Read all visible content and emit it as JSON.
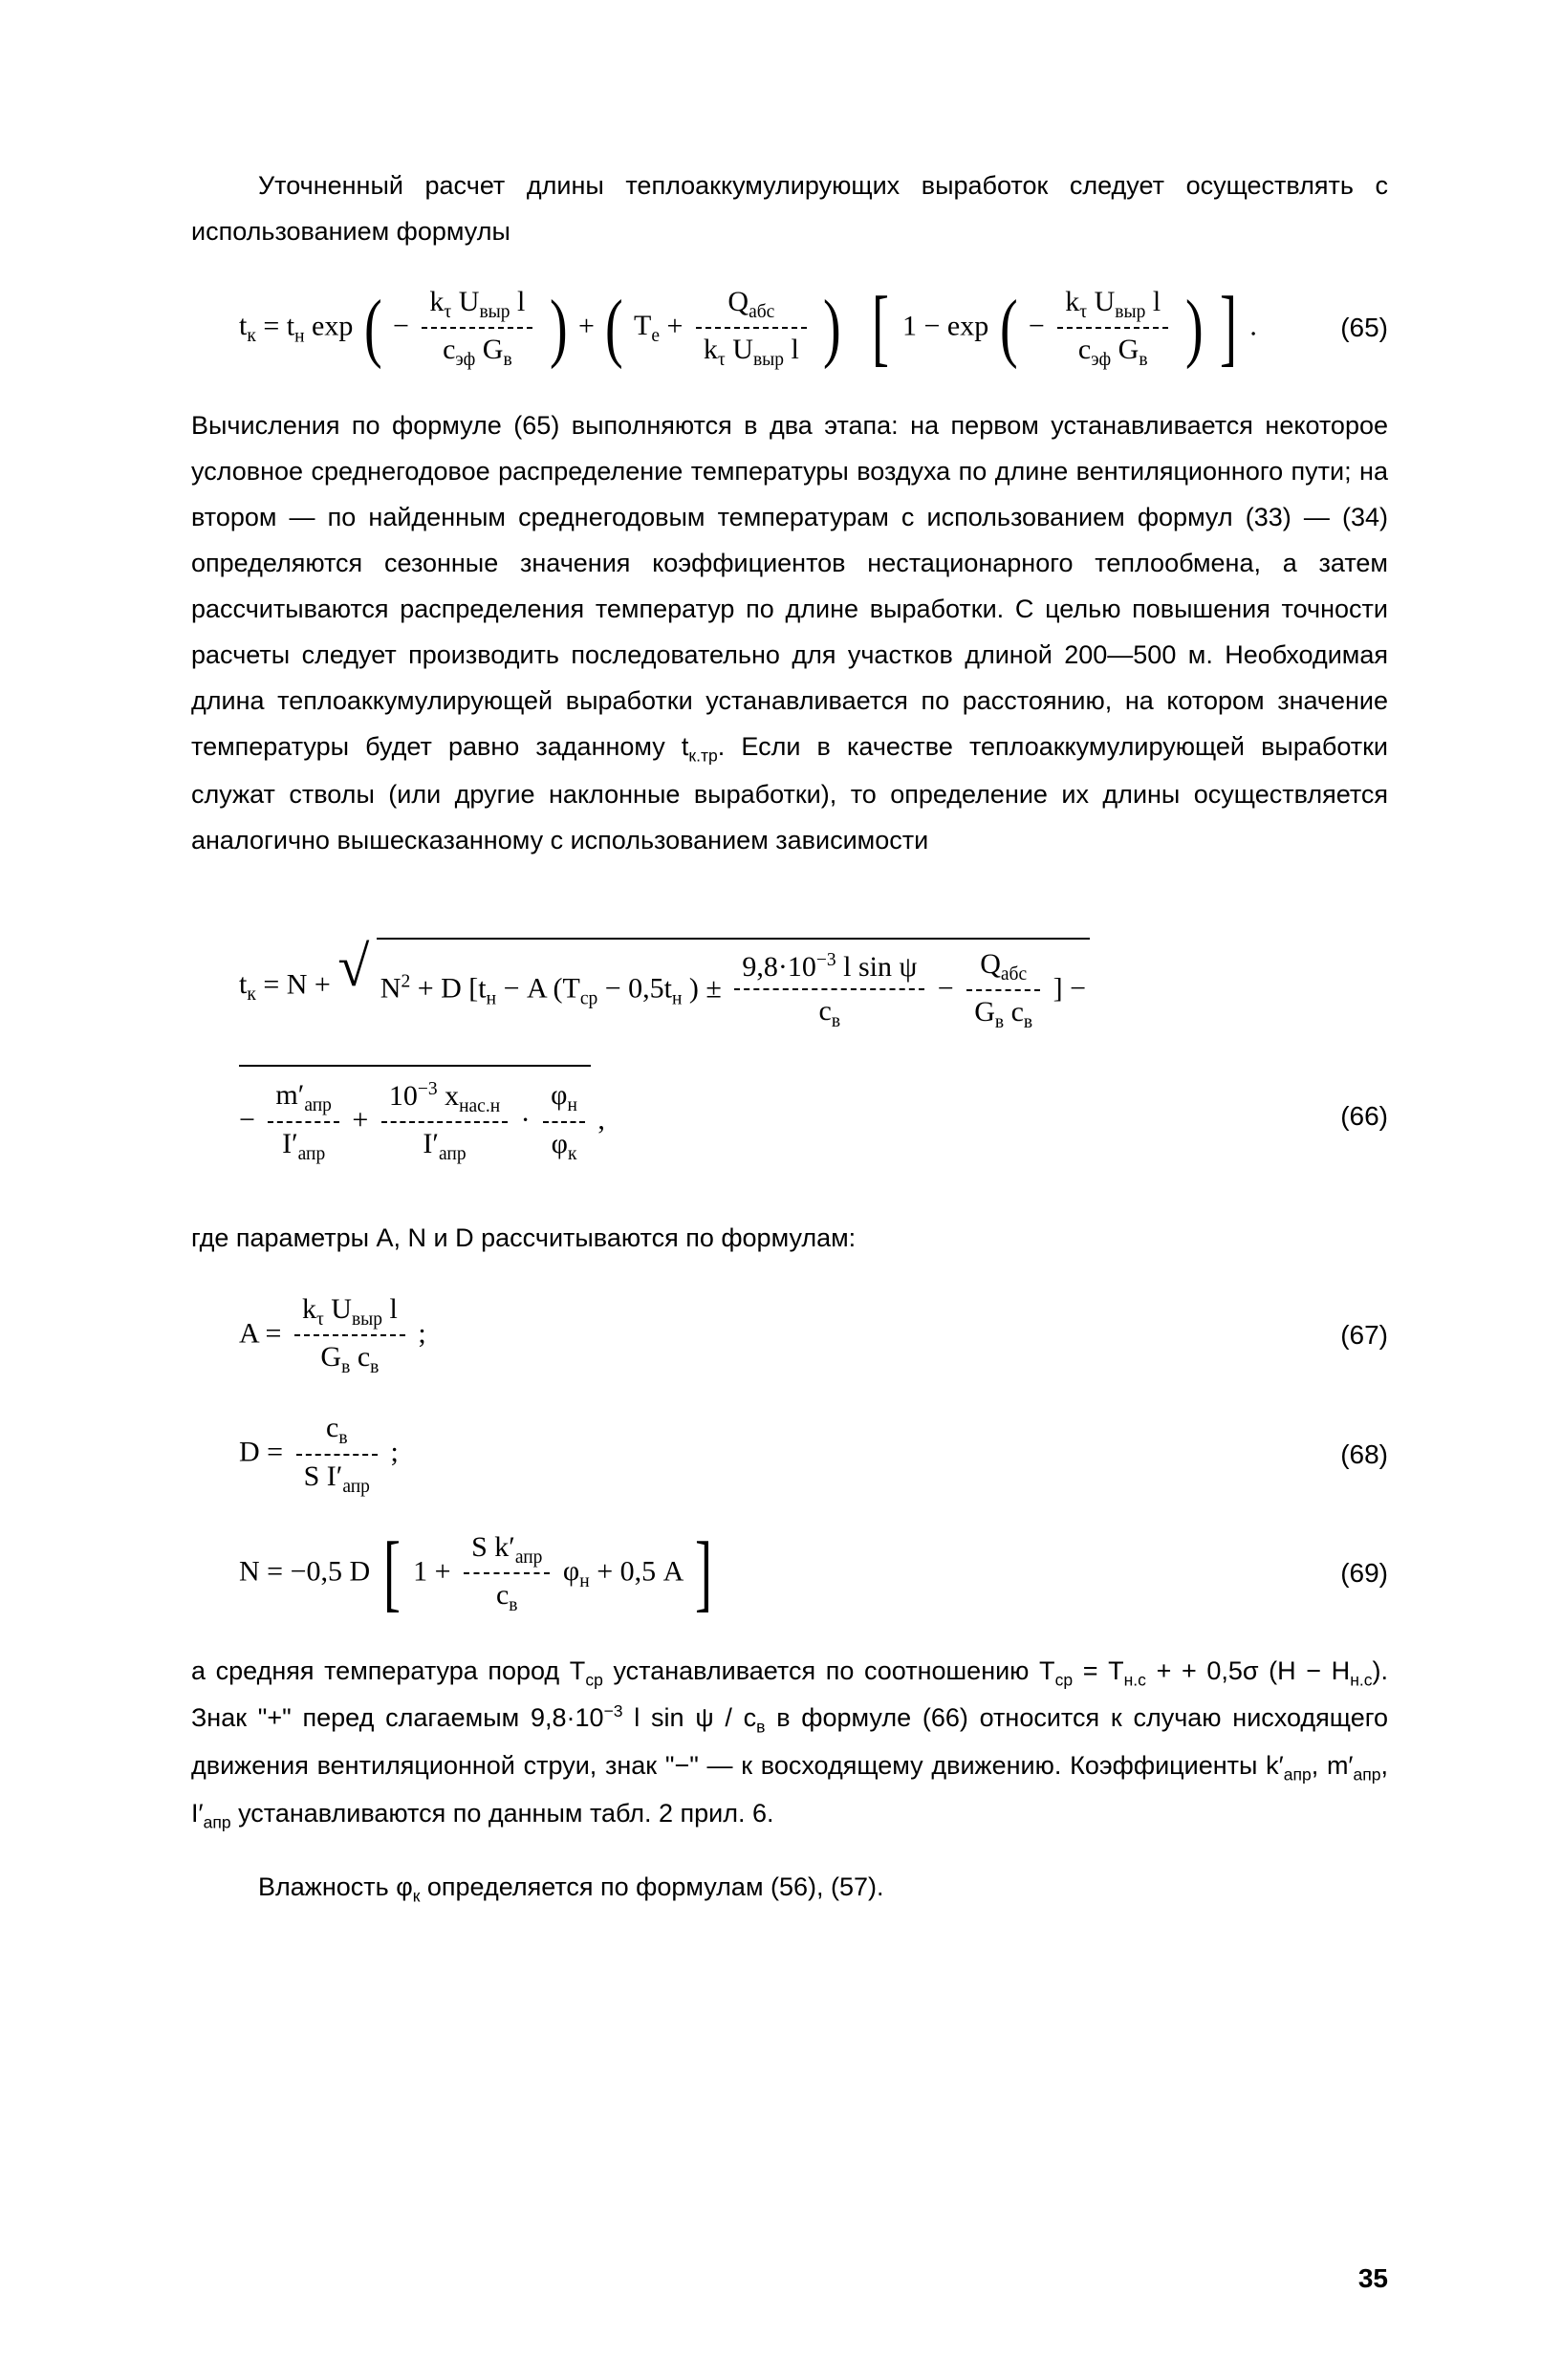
{
  "para1": "Уточненный расчет длины теплоаккумулирующих выработок следует осуществлять с использованием формулы",
  "eq65": {
    "lhs": "t",
    "lhs_sub": "к",
    "eq": " = t",
    "tH_sub": "н",
    "exp": " exp ",
    "f1_num_a": "k",
    "f1_num_a_sub": "τ",
    "f1_num_b": " U",
    "f1_num_b_sub": "выр",
    "f1_num_c": " l",
    "f1_den_a": "c",
    "f1_den_a_sub": "эф",
    "f1_den_b": " G",
    "f1_den_b_sub": "в",
    "plus": " + ",
    "Te": "T",
    "Te_sub": "e",
    "plus2": " + ",
    "f2_num": "Q",
    "f2_num_sub": "абс",
    "f2_den_a": "k",
    "f2_den_a_sub": "τ",
    "f2_den_b": " U",
    "f2_den_b_sub": "выр",
    "f2_den_c": " l",
    "one_minus": "1 − exp ",
    "dot_end": ".",
    "num": "(65)"
  },
  "para2": "Вычисления по формуле (65) выполняются в два этапа: на первом устанавливается некоторое условное среднегодовое распределение температуры воздуха по длине вентиляционного пути; на втором — по найденным среднегодовым температурам с использованием формул (33) — (34) определяются сезонные значения коэффициентов нестационарного теплообмена, а затем рассчитываются распределения температур по длине выработки. С целью повышения точности расчеты следует производить последовательно для участков длиной 200—500 м. Необходимая длина теплоаккумулирующей выработки устанавливается по расстоянию, на котором значение температуры будет равно заданному t",
  "para2_sub": "к.тр",
  "para2b": ". Если в качестве теплоаккумулирующей выработки служат стволы (или другие наклонные выработки), то определение их длины осуществляется аналогично вышесказанному с использованием зависимости",
  "eq66": {
    "lhs": "t",
    "lhs_sub": "к",
    "eq": "  =  N  + ",
    "N2": "N",
    "sq": "2",
    "plusD": " + D [t",
    "tH_sub": "н",
    "minusA": " − A (T",
    "Tcp_sub": "ср",
    "m05": " − 0,5t",
    "tH2_sub": "н",
    "close1": ")  ± ",
    "f1_num": "9,8·10",
    "f1_num_sup": "−3",
    "f1_num_b": " l sin ψ",
    "f1_den": "c",
    "f1_den_sub": "в",
    "minus2": "  −  ",
    "f2_num": "Q",
    "f2_num_sub": "абс",
    "f2_den_a": "G",
    "f2_den_a_sub": "в",
    "f2_den_b": " c",
    "f2_den_b_sub": "в",
    "close2": " ]   −",
    "line2_minus": "−   ",
    "f3_num": "m′",
    "f3_num_sub": "апр",
    "f3_den": "I′",
    "f3_den_sub": "апр",
    "plus3": "   +   ",
    "f4_num_a": "10",
    "f4_num_a_sup": "−3",
    "f4_num_b": " x",
    "f4_num_b_sub": "нас.н",
    "f4_den": "I′",
    "f4_den_sub": "апр",
    "times": " · ",
    "f5_num": "φ",
    "f5_num_sub": "н",
    "f5_den": "φ",
    "f5_den_sub": "к",
    "comma": "  ,",
    "num": "(66)"
  },
  "para3": "где параметры A, N и D рассчитываются по формулам:",
  "eq67": {
    "lhs": "A  = ",
    "f_num_a": "k",
    "f_num_a_sub": "τ",
    "f_num_b": " U",
    "f_num_b_sub": "выр",
    "f_num_c": " l",
    "f_den_a": "G",
    "f_den_a_sub": "в",
    "f_den_b": " c",
    "f_den_b_sub": "в",
    "semi": " ;",
    "num": "(67)"
  },
  "eq68": {
    "lhs": "D  = ",
    "f_num": "c",
    "f_num_sub": "в",
    "f_den_a": "S I′",
    "f_den_a_sub": "апр",
    "semi": "  ;",
    "num": "(68)"
  },
  "eq69": {
    "lhs": "N  =  −0,5 D ",
    "one_plus": "1 + ",
    "f_num_a": "S k′",
    "f_num_a_sub": "апр",
    "f_den": "c",
    "f_den_sub": "в",
    "phi": " φ",
    "phi_sub": "н",
    "plus05A": "  + 0,5 A",
    "num": "(69)"
  },
  "para4a": "а средняя температура пород T",
  "para4a_sub": "ср",
  "para4b": " устанавливается по соотношению  T",
  "para4b_sub": "ср",
  "para4c": " = T",
  "para4c_sub": "н.с",
  "para4d": " + + 0,5σ (H − H",
  "para4d_sub": "н.с",
  "para4e": "). Знак \"+\" перед слагаемым 9,8·10",
  "para4e_sup": "−3",
  "para4f": " l sin ψ / c",
  "para4f_sub": "в",
  "para4g": " в формуле (66) относится к случаю нисходящего движения вентиляционной струи, знак \"−\" — к восходящему движению. Коэффициенты k′",
  "para4g_sub": "апр",
  "para4h": ", m′",
  "para4h_sub": "апр",
  "para4i": ", I′",
  "para4i_sub": "апр",
  "para4j": " устанавливаются по данным табл. 2 прил. 6.",
  "para5a": "Влажность φ",
  "para5a_sub": "к",
  "para5b": " определяется по формулам (56), (57).",
  "page_number": "35"
}
